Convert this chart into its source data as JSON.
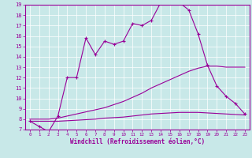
{
  "xlabel": "Windchill (Refroidissement éolien,°C)",
  "x": [
    0,
    1,
    2,
    3,
    4,
    5,
    6,
    7,
    8,
    9,
    10,
    11,
    12,
    13,
    14,
    15,
    16,
    17,
    18,
    19,
    20,
    21,
    22,
    23
  ],
  "line1": [
    7.8,
    7.3,
    6.8,
    8.3,
    12.0,
    12.0,
    15.8,
    14.2,
    15.5,
    15.2,
    15.5,
    17.2,
    17.0,
    17.5,
    19.2,
    19.2,
    19.2,
    18.5,
    16.2,
    13.2,
    11.2,
    10.2,
    9.5,
    8.5
  ],
  "line2": [
    8.0,
    8.0,
    8.0,
    8.1,
    8.3,
    8.5,
    8.7,
    8.9,
    9.1,
    9.4,
    9.7,
    10.1,
    10.5,
    11.0,
    11.4,
    11.8,
    12.2,
    12.6,
    12.9,
    13.1,
    13.1,
    13.0,
    13.0,
    13.0
  ],
  "line3": [
    7.8,
    7.8,
    7.8,
    7.8,
    7.85,
    7.9,
    7.95,
    8.0,
    8.1,
    8.15,
    8.2,
    8.3,
    8.4,
    8.5,
    8.55,
    8.6,
    8.65,
    8.65,
    8.65,
    8.6,
    8.55,
    8.5,
    8.45,
    8.4
  ],
  "color": "#990099",
  "bg_color": "#c8e8e8",
  "grid_color": "#ffffff",
  "ylim": [
    7,
    19
  ],
  "xlim": [
    -0.5,
    23.5
  ],
  "yticks": [
    7,
    8,
    9,
    10,
    11,
    12,
    13,
    14,
    15,
    16,
    17,
    18,
    19
  ],
  "xticks": [
    0,
    1,
    2,
    3,
    4,
    5,
    6,
    7,
    8,
    9,
    10,
    11,
    12,
    13,
    14,
    15,
    16,
    17,
    18,
    19,
    20,
    21,
    22,
    23
  ]
}
